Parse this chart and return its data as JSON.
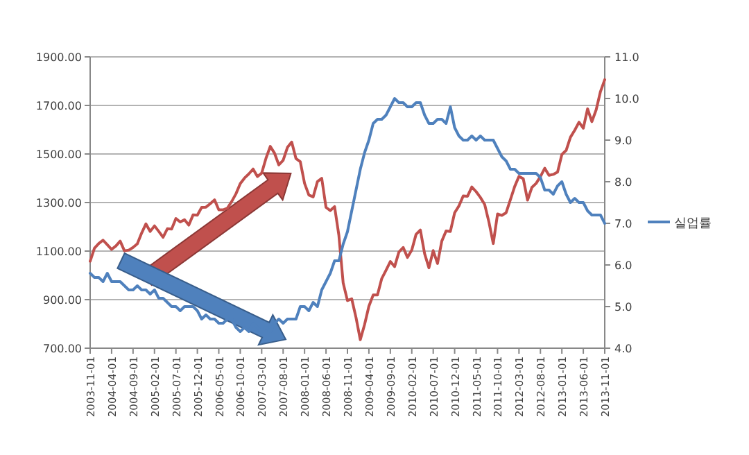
{
  "chart_data": {
    "type": "line",
    "x": [
      "2003-11-01",
      "2003-12-01",
      "2004-01-01",
      "2004-02-01",
      "2004-03-01",
      "2004-04-01",
      "2004-05-01",
      "2004-06-01",
      "2004-07-01",
      "2004-08-01",
      "2004-09-01",
      "2004-10-01",
      "2004-11-01",
      "2004-12-01",
      "2005-01-01",
      "2005-02-01",
      "2005-03-01",
      "2005-04-01",
      "2005-05-01",
      "2005-06-01",
      "2005-07-01",
      "2005-08-01",
      "2005-09-01",
      "2005-10-01",
      "2005-11-01",
      "2005-12-01",
      "2006-01-01",
      "2006-02-01",
      "2006-03-01",
      "2006-04-01",
      "2006-05-01",
      "2006-06-01",
      "2006-07-01",
      "2006-08-01",
      "2006-09-01",
      "2006-10-01",
      "2006-11-01",
      "2006-12-01",
      "2007-01-01",
      "2007-02-01",
      "2007-03-01",
      "2007-04-01",
      "2007-05-01",
      "2007-06-01",
      "2007-07-01",
      "2007-08-01",
      "2007-09-01",
      "2007-10-01",
      "2007-11-01",
      "2007-12-01",
      "2008-01-01",
      "2008-02-01",
      "2008-03-01",
      "2008-04-01",
      "2008-05-01",
      "2008-06-01",
      "2008-07-01",
      "2008-08-01",
      "2008-09-01",
      "2008-10-01",
      "2008-11-01",
      "2008-12-01",
      "2009-01-01",
      "2009-02-01",
      "2009-03-01",
      "2009-04-01",
      "2009-05-01",
      "2009-06-01",
      "2009-07-01",
      "2009-08-01",
      "2009-09-01",
      "2009-10-01",
      "2009-11-01",
      "2009-12-01",
      "2010-01-01",
      "2010-02-01",
      "2010-03-01",
      "2010-04-01",
      "2010-05-01",
      "2010-06-01",
      "2010-07-01",
      "2010-08-01",
      "2010-09-01",
      "2010-10-01",
      "2010-11-01",
      "2010-12-01",
      "2011-01-01",
      "2011-02-01",
      "2011-03-01",
      "2011-04-01",
      "2011-05-01",
      "2011-06-01",
      "2011-07-01",
      "2011-08-01",
      "2011-09-01",
      "2011-10-01",
      "2011-11-01",
      "2011-12-01",
      "2012-01-01",
      "2012-02-01",
      "2012-03-01",
      "2012-04-01",
      "2012-05-01",
      "2012-06-01",
      "2012-07-01",
      "2012-08-01",
      "2012-09-01",
      "2012-10-01",
      "2012-11-01",
      "2012-12-01",
      "2013-01-01",
      "2013-02-01",
      "2013-03-01",
      "2013-04-01",
      "2013-05-01",
      "2013-06-01",
      "2013-07-01",
      "2013-08-01",
      "2013-09-01",
      "2013-10-01",
      "2013-11-01"
    ],
    "series": [
      {
        "color": "#c0504d",
        "values": [
          1058,
          1112,
          1131,
          1145,
          1126,
          1107,
          1121,
          1141,
          1101,
          1104,
          1115,
          1130,
          1174,
          1212,
          1181,
          1204,
          1181,
          1157,
          1192,
          1191,
          1234,
          1220,
          1229,
          1207,
          1249,
          1248,
          1280,
          1281,
          1295,
          1311,
          1270,
          1270,
          1277,
          1304,
          1336,
          1378,
          1401,
          1418,
          1438,
          1407,
          1421,
          1482,
          1531,
          1503,
          1455,
          1474,
          1527,
          1549,
          1481,
          1468,
          1379,
          1331,
          1323,
          1386,
          1400,
          1280,
          1267,
          1283,
          1165,
          969,
          896,
          903,
          826,
          735,
          798,
          873,
          919,
          919,
          987,
          1021,
          1057,
          1036,
          1096,
          1115,
          1074,
          1104,
          1169,
          1187,
          1089,
          1031,
          1102,
          1049,
          1141,
          1183,
          1181,
          1258,
          1286,
          1327,
          1326,
          1364,
          1345,
          1321,
          1292,
          1219,
          1131,
          1253,
          1247,
          1258,
          1312,
          1366,
          1408,
          1398,
          1310,
          1362,
          1379,
          1407,
          1441,
          1412,
          1416,
          1426,
          1498,
          1515,
          1569,
          1598,
          1631,
          1606,
          1686,
          1633,
          1682,
          1757,
          1806
        ]
      },
      {
        "name": "실업률",
        "color": "#4f81bd",
        "axis": "y2",
        "values": [
          5.8,
          5.7,
          5.7,
          5.6,
          5.8,
          5.6,
          5.6,
          5.6,
          5.5,
          5.4,
          5.4,
          5.5,
          5.4,
          5.4,
          5.3,
          5.4,
          5.2,
          5.2,
          5.1,
          5.0,
          5.0,
          4.9,
          5.0,
          5.0,
          5.0,
          4.9,
          4.7,
          4.8,
          4.7,
          4.7,
          4.6,
          4.6,
          4.7,
          4.7,
          4.5,
          4.4,
          4.5,
          4.4,
          4.6,
          4.5,
          4.4,
          4.5,
          4.4,
          4.6,
          4.7,
          4.6,
          4.7,
          4.7,
          4.7,
          5.0,
          5.0,
          4.9,
          5.1,
          5.0,
          5.4,
          5.6,
          5.8,
          6.1,
          6.1,
          6.5,
          6.8,
          7.3,
          7.8,
          8.3,
          8.7,
          9.0,
          9.4,
          9.5,
          9.5,
          9.6,
          9.8,
          10.0,
          9.9,
          9.9,
          9.8,
          9.8,
          9.9,
          9.9,
          9.6,
          9.4,
          9.4,
          9.5,
          9.5,
          9.4,
          9.8,
          9.3,
          9.1,
          9.0,
          9.0,
          9.1,
          9.0,
          9.1,
          9.0,
          9.0,
          9.0,
          8.8,
          8.6,
          8.5,
          8.3,
          8.3,
          8.2,
          8.2,
          8.2,
          8.2,
          8.2,
          8.1,
          7.8,
          7.8,
          7.7,
          7.9,
          8.0,
          7.7,
          7.5,
          7.6,
          7.5,
          7.5,
          7.3,
          7.2,
          7.2,
          7.2,
          7.0
        ]
      }
    ],
    "xlim": [
      "2003-11-01",
      "2013-11-01"
    ],
    "xticks": [
      "2003-11-01",
      "2004-04-01",
      "2004-09-01",
      "2005-02-01",
      "2005-07-01",
      "2005-12-01",
      "2006-05-01",
      "2006-10-01",
      "2007-03-01",
      "2007-08-01",
      "2008-01-01",
      "2008-06-01",
      "2008-11-01",
      "2009-04-01",
      "2009-09-01",
      "2010-02-01",
      "2010-07-01",
      "2010-12-01",
      "2011-05-01",
      "2011-10-01",
      "2012-03-01",
      "2012-08-01",
      "2013-01-01",
      "2013-06-01",
      "2013-11-01"
    ],
    "ylim": [
      700,
      1900
    ],
    "yticks": [
      {
        "value": 700,
        "label": "700.00"
      },
      {
        "value": 900,
        "label": "900.00"
      },
      {
        "value": 1100,
        "label": "1100.00"
      },
      {
        "value": 1300,
        "label": "1300.00"
      },
      {
        "value": 1500,
        "label": "1500.00"
      },
      {
        "value": 1700,
        "label": "1700.00"
      },
      {
        "value": 1900,
        "label": "1900.00"
      }
    ],
    "y2lim": [
      4,
      11
    ],
    "y2ticks": [
      {
        "value": 4,
        "label": "4.0"
      },
      {
        "value": 5,
        "label": "5.0"
      },
      {
        "value": 6,
        "label": "6.0"
      },
      {
        "value": 7,
        "label": "7.0"
      },
      {
        "value": 8,
        "label": "8.0"
      },
      {
        "value": 9,
        "label": "9.0"
      },
      {
        "value": 10,
        "label": "10.0"
      },
      {
        "value": 11,
        "label": "11.0"
      }
    ],
    "grid": "y",
    "legend": "right",
    "marker": "none",
    "line_style": "solid"
  }
}
